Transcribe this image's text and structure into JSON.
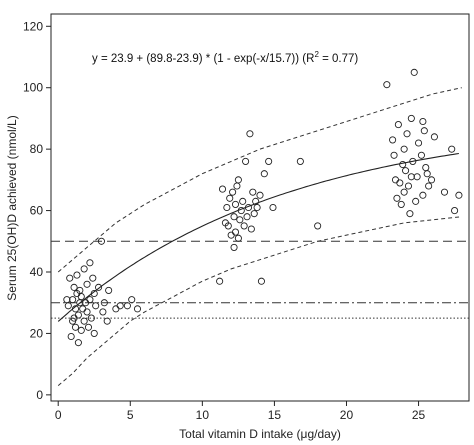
{
  "chart_data": {
    "type": "scatter",
    "xlabel": "Total vitamin D intake (μg/day)",
    "ylabel": "Serum 25(OH)D achieved (nmol/L)",
    "xlim": [
      -0.5,
      28.5
    ],
    "ylim": [
      -2,
      124
    ],
    "xticks": [
      0,
      5,
      10,
      15,
      20,
      25
    ],
    "yticks": [
      0,
      20,
      40,
      60,
      80,
      100,
      120
    ],
    "grid": false,
    "annotation": {
      "text_main": "y = 23.9 + (89.8-23.9) * (1 - exp(-x/15.7)) (R",
      "text_sup": "2",
      "text_tail": " = 0.77)"
    },
    "model": {
      "a": 23.9,
      "b": 89.8,
      "c": 15.7,
      "x_range": [
        0,
        27.8
      ]
    },
    "upper_band": [
      [
        0,
        40
      ],
      [
        2,
        48
      ],
      [
        4,
        56
      ],
      [
        6,
        62
      ],
      [
        8,
        67
      ],
      [
        10,
        72
      ],
      [
        12,
        76
      ],
      [
        14,
        80
      ],
      [
        16,
        83
      ],
      [
        18,
        86
      ],
      [
        20,
        89
      ],
      [
        22,
        92
      ],
      [
        24,
        95
      ],
      [
        26,
        98
      ],
      [
        28,
        100
      ]
    ],
    "lower_band": [
      [
        0,
        3
      ],
      [
        1,
        7
      ],
      [
        2,
        12
      ],
      [
        3,
        16
      ],
      [
        4,
        20
      ],
      [
        5,
        24
      ],
      [
        6,
        27
      ],
      [
        8,
        32
      ],
      [
        10,
        37
      ],
      [
        12,
        41
      ],
      [
        14,
        44
      ],
      [
        16,
        47
      ],
      [
        18,
        50
      ],
      [
        20,
        52
      ],
      [
        22,
        54
      ],
      [
        24,
        56
      ],
      [
        26,
        57
      ],
      [
        28,
        58
      ]
    ],
    "reference_lines": [
      {
        "y": 50,
        "style": "dashed"
      },
      {
        "y": 30,
        "style": "dashdot"
      },
      {
        "y": 25,
        "style": "dotted"
      }
    ],
    "points": [
      [
        0.6,
        31
      ],
      [
        0.7,
        29
      ],
      [
        0.8,
        38
      ],
      [
        0.9,
        19
      ],
      [
        1.0,
        24
      ],
      [
        1.0,
        31
      ],
      [
        1.1,
        25
      ],
      [
        1.1,
        35
      ],
      [
        1.2,
        22
      ],
      [
        1.2,
        28
      ],
      [
        1.3,
        39
      ],
      [
        1.3,
        33
      ],
      [
        1.4,
        17
      ],
      [
        1.4,
        26
      ],
      [
        1.5,
        30
      ],
      [
        1.5,
        34
      ],
      [
        1.6,
        21
      ],
      [
        1.6,
        32
      ],
      [
        1.7,
        28
      ],
      [
        1.8,
        41
      ],
      [
        1.8,
        24
      ],
      [
        1.9,
        30
      ],
      [
        2.0,
        27
      ],
      [
        2.0,
        36
      ],
      [
        2.1,
        22
      ],
      [
        2.2,
        43
      ],
      [
        2.2,
        31
      ],
      [
        2.3,
        25
      ],
      [
        2.4,
        38
      ],
      [
        2.5,
        20
      ],
      [
        2.5,
        33
      ],
      [
        2.6,
        29
      ],
      [
        2.8,
        35
      ],
      [
        3.0,
        50
      ],
      [
        3.1,
        27
      ],
      [
        3.2,
        30
      ],
      [
        3.4,
        24
      ],
      [
        3.5,
        34
      ],
      [
        4.0,
        28
      ],
      [
        4.3,
        29
      ],
      [
        4.8,
        29
      ],
      [
        5.1,
        31
      ],
      [
        5.5,
        28
      ],
      [
        11.2,
        37
      ],
      [
        11.4,
        67
      ],
      [
        11.6,
        56
      ],
      [
        11.7,
        61
      ],
      [
        11.8,
        55
      ],
      [
        11.9,
        64
      ],
      [
        12.0,
        52
      ],
      [
        12.1,
        66
      ],
      [
        12.2,
        48
      ],
      [
        12.2,
        58
      ],
      [
        12.3,
        53
      ],
      [
        12.3,
        62
      ],
      [
        12.4,
        68
      ],
      [
        12.5,
        70
      ],
      [
        12.5,
        51
      ],
      [
        12.6,
        57
      ],
      [
        12.7,
        60
      ],
      [
        12.8,
        63
      ],
      [
        12.9,
        55
      ],
      [
        13.0,
        76
      ],
      [
        13.1,
        58
      ],
      [
        13.2,
        61
      ],
      [
        13.3,
        85
      ],
      [
        13.4,
        54
      ],
      [
        13.5,
        66
      ],
      [
        13.6,
        59
      ],
      [
        13.7,
        63
      ],
      [
        13.8,
        61
      ],
      [
        14.0,
        65
      ],
      [
        14.1,
        37
      ],
      [
        14.3,
        72
      ],
      [
        14.6,
        76
      ],
      [
        14.9,
        61
      ],
      [
        16.8,
        76
      ],
      [
        18.0,
        55
      ],
      [
        22.8,
        101
      ],
      [
        23.2,
        83
      ],
      [
        23.3,
        78
      ],
      [
        23.4,
        70
      ],
      [
        23.5,
        64
      ],
      [
        23.6,
        88
      ],
      [
        23.7,
        69
      ],
      [
        23.8,
        62
      ],
      [
        23.9,
        75
      ],
      [
        24.0,
        80
      ],
      [
        24.0,
        66
      ],
      [
        24.1,
        73
      ],
      [
        24.2,
        85
      ],
      [
        24.3,
        68
      ],
      [
        24.4,
        59
      ],
      [
        24.5,
        71
      ],
      [
        24.5,
        90
      ],
      [
        24.6,
        76
      ],
      [
        24.7,
        105
      ],
      [
        24.8,
        63
      ],
      [
        24.9,
        71
      ],
      [
        25.0,
        82
      ],
      [
        25.2,
        78
      ],
      [
        25.3,
        89
      ],
      [
        25.3,
        65
      ],
      [
        25.4,
        86
      ],
      [
        25.5,
        74
      ],
      [
        25.6,
        72
      ],
      [
        25.7,
        68
      ],
      [
        25.9,
        70
      ],
      [
        26.1,
        84
      ],
      [
        26.8,
        66
      ],
      [
        27.3,
        80
      ],
      [
        27.5,
        60
      ],
      [
        27.8,
        65
      ]
    ]
  }
}
